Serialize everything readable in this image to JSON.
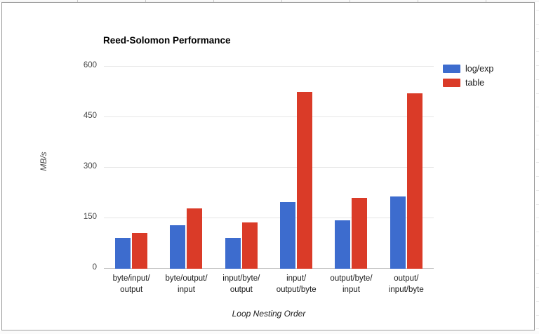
{
  "window": {
    "background": "#ffffff",
    "frame_border_color": "#9c9c9c"
  },
  "chart_data": {
    "type": "bar",
    "title": "Reed-Solomon Performance",
    "xlabel": "Loop Nesting Order",
    "ylabel": "MB/s",
    "ylim": [
      0,
      600
    ],
    "yticks": [
      0,
      150,
      300,
      450,
      600
    ],
    "grid": true,
    "legend_position": "top-right",
    "categories": [
      "byte/input/\noutput",
      "byte/output/\ninput",
      "input/byte/\noutput",
      "input/\noutput/byte",
      "output/byte/\ninput",
      "output/\ninput/byte"
    ],
    "series": [
      {
        "name": "log/exp",
        "color": "#3d6cce",
        "values": [
          92,
          130,
          92,
          198,
          143,
          215
        ]
      },
      {
        "name": "table",
        "color": "#da3b28",
        "values": [
          107,
          180,
          137,
          526,
          210,
          520
        ]
      }
    ]
  }
}
